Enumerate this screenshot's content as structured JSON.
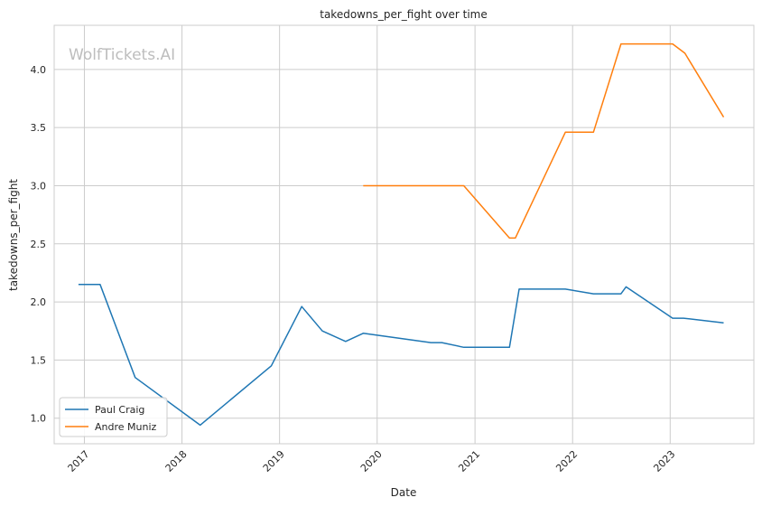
{
  "chart_data": {
    "type": "line",
    "title": "takedowns_per_fight over time",
    "xlabel": "Date",
    "ylabel": "takedowns_per_fight",
    "watermark": "WolfTickets.AI",
    "xlim": [
      "2016-09-10",
      "2023-11-10"
    ],
    "ylim": [
      0.78,
      4.38
    ],
    "x_ticks": [
      {
        "value": "2017-01-01",
        "label": "2017"
      },
      {
        "value": "2018-01-01",
        "label": "2018"
      },
      {
        "value": "2019-01-01",
        "label": "2019"
      },
      {
        "value": "2020-01-01",
        "label": "2020"
      },
      {
        "value": "2021-01-01",
        "label": "2021"
      },
      {
        "value": "2022-01-01",
        "label": "2022"
      },
      {
        "value": "2023-01-01",
        "label": "2023"
      }
    ],
    "y_ticks": [
      {
        "value": 1.0,
        "label": "1.0"
      },
      {
        "value": 1.5,
        "label": "1.5"
      },
      {
        "value": 2.0,
        "label": "2.0"
      },
      {
        "value": 2.5,
        "label": "2.5"
      },
      {
        "value": 3.0,
        "label": "3.0"
      },
      {
        "value": 3.5,
        "label": "3.5"
      },
      {
        "value": 4.0,
        "label": "4.0"
      }
    ],
    "grid": true,
    "legend_position": "lower-left",
    "series": [
      {
        "name": "Paul Craig",
        "color": "#1f77b4",
        "points": [
          {
            "x": "2016-12-10",
            "y": 2.15
          },
          {
            "x": "2017-03-01",
            "y": 2.15
          },
          {
            "x": "2017-07-10",
            "y": 1.35
          },
          {
            "x": "2018-03-10",
            "y": 0.94
          },
          {
            "x": "2018-12-01",
            "y": 1.45
          },
          {
            "x": "2019-03-25",
            "y": 1.96
          },
          {
            "x": "2019-06-10",
            "y": 1.75
          },
          {
            "x": "2019-09-05",
            "y": 1.66
          },
          {
            "x": "2019-11-10",
            "y": 1.73
          },
          {
            "x": "2020-07-20",
            "y": 1.65
          },
          {
            "x": "2020-08-30",
            "y": 1.65
          },
          {
            "x": "2020-11-20",
            "y": 1.61
          },
          {
            "x": "2021-05-10",
            "y": 1.61
          },
          {
            "x": "2021-06-15",
            "y": 2.11
          },
          {
            "x": "2021-12-05",
            "y": 2.11
          },
          {
            "x": "2022-03-20",
            "y": 2.07
          },
          {
            "x": "2022-07-01",
            "y": 2.07
          },
          {
            "x": "2022-07-20",
            "y": 2.13
          },
          {
            "x": "2023-01-10",
            "y": 1.86
          },
          {
            "x": "2023-02-20",
            "y": 1.86
          },
          {
            "x": "2023-07-20",
            "y": 1.82
          }
        ]
      },
      {
        "name": "Andre Muniz",
        "color": "#ff7f0e",
        "points": [
          {
            "x": "2019-11-10",
            "y": 3.0
          },
          {
            "x": "2020-11-20",
            "y": 3.0
          },
          {
            "x": "2021-05-10",
            "y": 2.55
          },
          {
            "x": "2021-06-01",
            "y": 2.55
          },
          {
            "x": "2021-12-05",
            "y": 3.46
          },
          {
            "x": "2022-03-20",
            "y": 3.46
          },
          {
            "x": "2022-07-01",
            "y": 4.22
          },
          {
            "x": "2023-01-10",
            "y": 4.22
          },
          {
            "x": "2023-02-25",
            "y": 4.14
          },
          {
            "x": "2023-07-20",
            "y": 3.59
          }
        ]
      }
    ]
  }
}
